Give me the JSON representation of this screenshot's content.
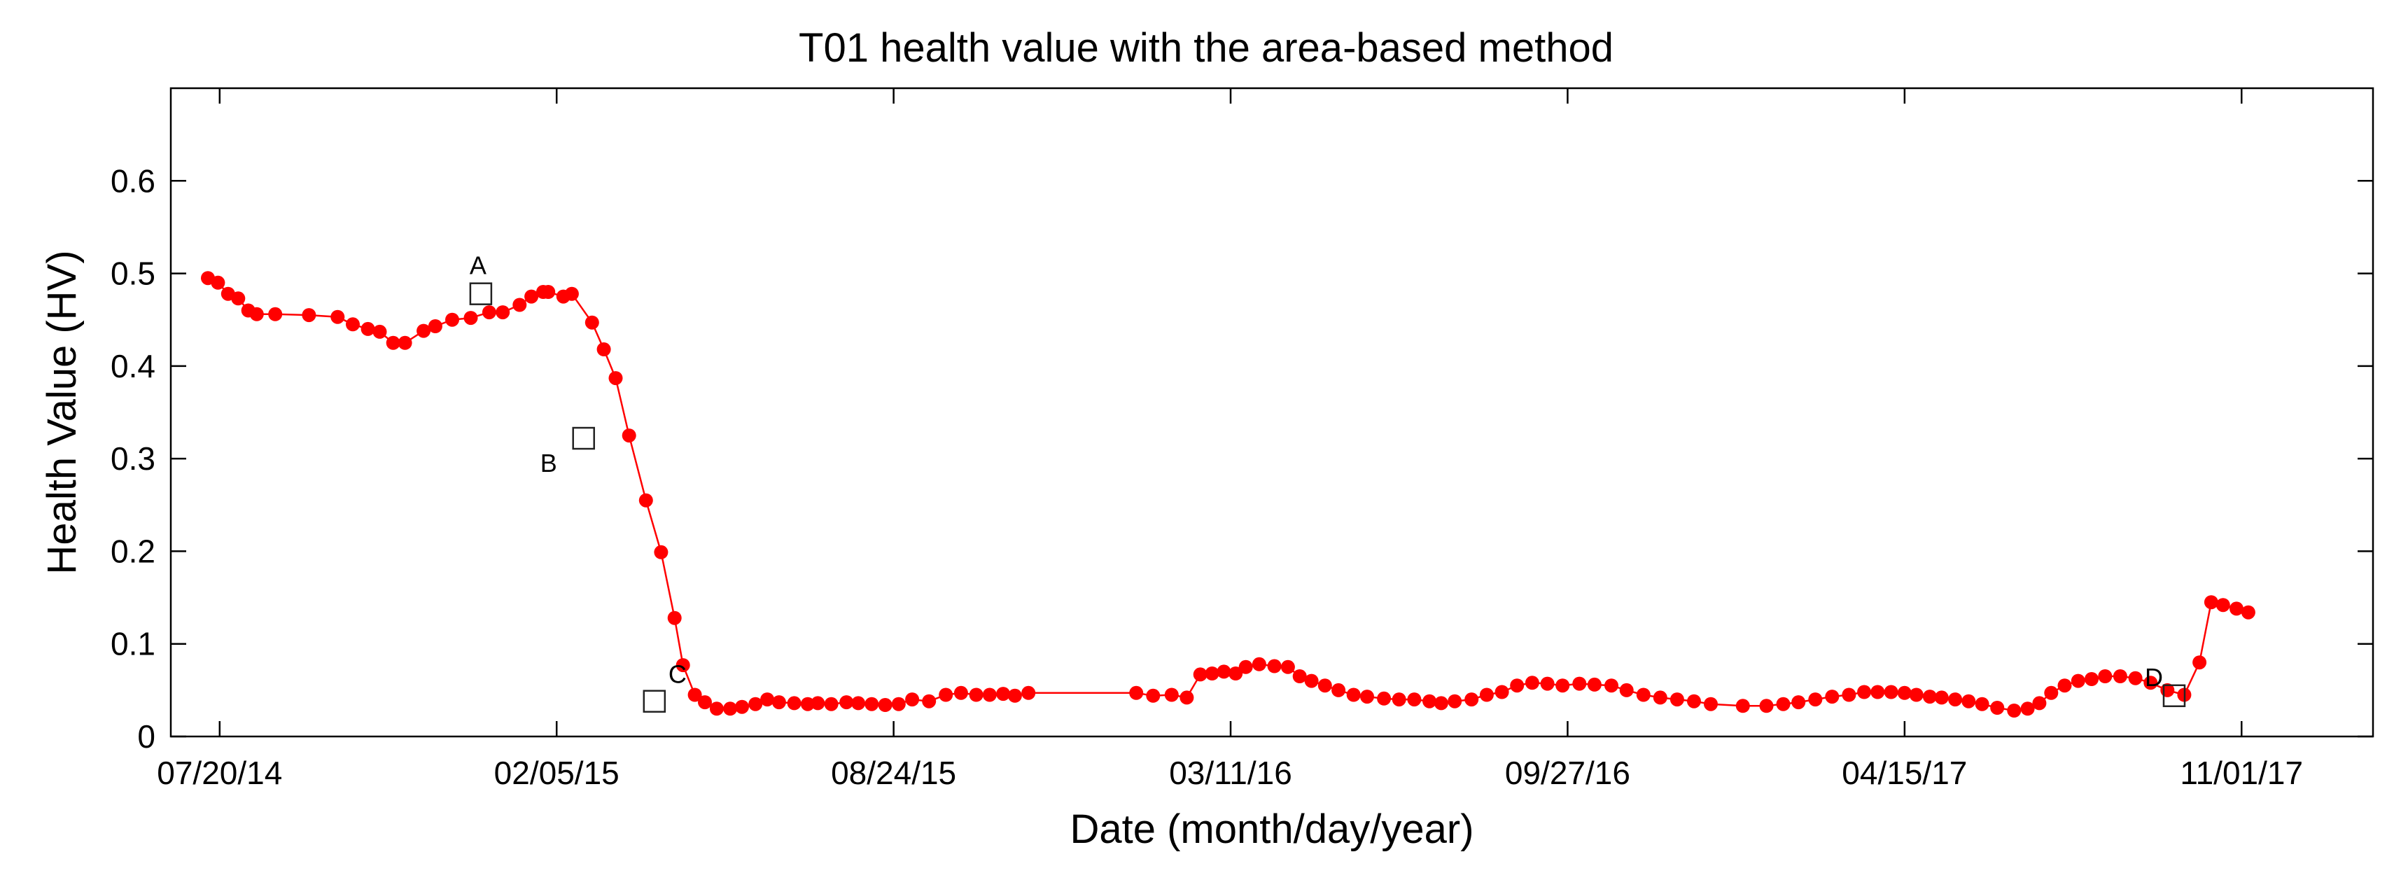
{
  "chart_data": {
    "type": "line",
    "title": "T01 health value with the area-based method",
    "xlabel": "Date (month/day/year)",
    "ylabel": "Health Value (HV)",
    "x_ticks": [
      "07/20/14",
      "02/05/15",
      "08/24/15",
      "03/11/16",
      "09/27/16",
      "04/15/17",
      "11/01/17"
    ],
    "y_ticks": [
      "0",
      "0.1",
      "0.2",
      "0.3",
      "0.4",
      "0.5",
      "0.6"
    ],
    "xlim": [
      "2014-06-21",
      "2018-01-18"
    ],
    "ylim": [
      0,
      0.7
    ],
    "grid": false,
    "line_color": "#ff0000",
    "marker": "filled-circle",
    "series": [
      {
        "x": [
          "2014-07-13",
          "2014-07-19",
          "2014-07-25",
          "2014-07-31",
          "2014-08-06",
          "2014-08-11",
          "2014-08-22",
          "2014-09-11",
          "2014-09-28",
          "2014-10-07",
          "2014-10-16",
          "2014-10-23",
          "2014-10-31",
          "2014-11-07",
          "2014-11-18",
          "2014-11-25",
          "2014-12-05",
          "2014-12-16",
          "2014-12-27",
          "2015-01-04",
          "2015-01-14",
          "2015-01-21",
          "2015-01-28",
          "2015-01-31",
          "2015-02-09",
          "2015-02-14",
          "2015-02-26",
          "2015-03-05",
          "2015-03-12",
          "2015-03-20",
          "2015-03-30",
          "2015-04-08",
          "2015-04-16",
          "2015-04-21",
          "2015-04-28",
          "2015-05-04",
          "2015-05-11",
          "2015-05-19",
          "2015-05-26",
          "2015-06-03",
          "2015-06-10",
          "2015-06-17",
          "2015-06-26",
          "2015-07-04",
          "2015-07-10",
          "2015-07-18",
          "2015-07-27",
          "2015-08-03",
          "2015-08-11",
          "2015-08-19",
          "2015-08-27",
          "2015-09-04",
          "2015-09-14",
          "2015-09-24",
          "2015-10-03",
          "2015-10-12",
          "2015-10-20",
          "2015-10-28",
          "2015-11-04",
          "2015-11-12",
          "2016-01-15",
          "2016-01-25",
          "2016-02-05",
          "2016-02-14",
          "2016-02-22",
          "2016-02-29",
          "2016-03-07",
          "2016-03-14",
          "2016-03-20",
          "2016-03-28",
          "2016-04-06",
          "2016-04-14",
          "2016-04-21",
          "2016-04-28",
          "2016-05-06",
          "2016-05-14",
          "2016-05-23",
          "2016-05-31",
          "2016-06-10",
          "2016-06-19",
          "2016-06-28",
          "2016-07-07",
          "2016-07-14",
          "2016-07-22",
          "2016-08-01",
          "2016-08-10",
          "2016-08-19",
          "2016-08-28",
          "2016-09-06",
          "2016-09-15",
          "2016-09-24",
          "2016-10-04",
          "2016-10-13",
          "2016-10-23",
          "2016-11-01",
          "2016-11-11",
          "2016-11-21",
          "2016-12-01",
          "2016-12-11",
          "2016-12-21",
          "2017-01-09",
          "2017-01-23",
          "2017-02-02",
          "2017-02-11",
          "2017-02-21",
          "2017-03-03",
          "2017-03-13",
          "2017-03-22",
          "2017-03-30",
          "2017-04-07",
          "2017-04-15",
          "2017-04-22",
          "2017-04-30",
          "2017-05-07",
          "2017-05-15",
          "2017-05-23",
          "2017-05-31",
          "2017-06-09",
          "2017-06-19",
          "2017-06-27",
          "2017-07-04",
          "2017-07-11",
          "2017-07-19",
          "2017-07-27",
          "2017-08-04",
          "2017-08-12",
          "2017-08-21",
          "2017-08-30",
          "2017-09-08",
          "2017-09-18",
          "2017-09-28",
          "2017-10-07",
          "2017-10-14",
          "2017-10-21",
          "2017-10-29",
          "2017-11-05"
        ],
        "y": [
          0.495,
          0.49,
          0.478,
          0.473,
          0.46,
          0.456,
          0.456,
          0.455,
          0.453,
          0.445,
          0.44,
          0.437,
          0.425,
          0.425,
          0.438,
          0.443,
          0.45,
          0.452,
          0.458,
          0.458,
          0.466,
          0.475,
          0.48,
          0.48,
          0.475,
          0.478,
          0.447,
          0.418,
          0.387,
          0.325,
          0.255,
          0.199,
          0.128,
          0.077,
          0.045,
          0.037,
          0.03,
          0.03,
          0.032,
          0.035,
          0.04,
          0.037,
          0.036,
          0.035,
          0.036,
          0.035,
          0.037,
          0.036,
          0.035,
          0.034,
          0.035,
          0.04,
          0.038,
          0.045,
          0.047,
          0.045,
          0.045,
          0.046,
          0.044,
          0.047,
          0.047,
          0.044,
          0.045,
          0.042,
          0.067,
          0.068,
          0.07,
          0.068,
          0.075,
          0.078,
          0.076,
          0.075,
          0.065,
          0.06,
          0.055,
          0.05,
          0.045,
          0.043,
          0.041,
          0.04,
          0.04,
          0.038,
          0.036,
          0.038,
          0.04,
          0.045,
          0.048,
          0.055,
          0.058,
          0.057,
          0.055,
          0.057,
          0.056,
          0.055,
          0.05,
          0.045,
          0.042,
          0.04,
          0.038,
          0.035,
          0.033,
          0.033,
          0.035,
          0.037,
          0.04,
          0.043,
          0.045,
          0.048,
          0.048,
          0.048,
          0.047,
          0.045,
          0.043,
          0.042,
          0.04,
          0.038,
          0.035,
          0.031,
          0.028,
          0.03,
          0.036,
          0.047,
          0.055,
          0.06,
          0.062,
          0.065,
          0.065,
          0.063,
          0.058,
          0.05,
          0.045,
          0.08,
          0.145,
          0.142,
          0.138,
          0.134
        ]
      }
    ],
    "annotations": [
      {
        "label": "A",
        "x": "2014-12-22",
        "y": 0.478
      },
      {
        "label": "B",
        "x": "2015-02-21",
        "y": 0.322
      },
      {
        "label": "C",
        "x": "2015-04-04",
        "y": 0.038
      },
      {
        "label": "D",
        "x": "2017-09-22",
        "y": 0.044
      }
    ]
  }
}
